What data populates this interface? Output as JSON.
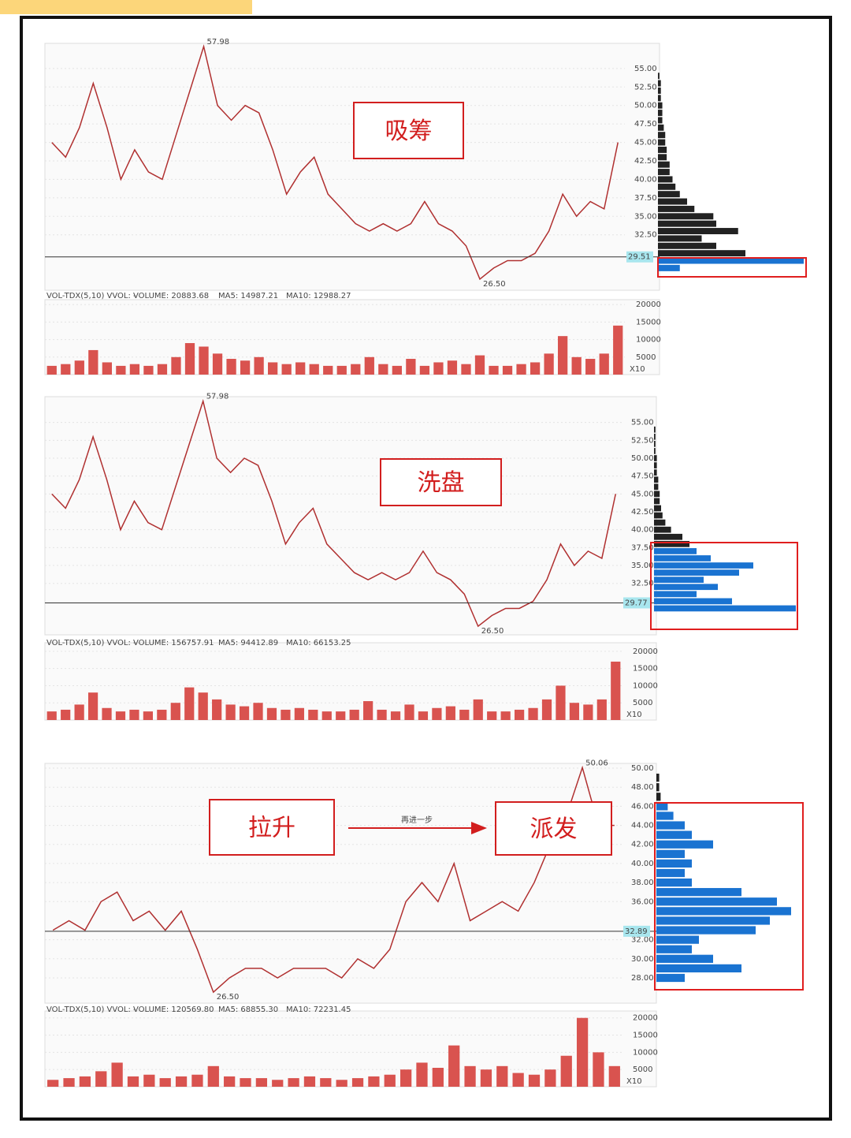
{
  "chart_data": [
    {
      "type": "line",
      "box_labels": [
        "吸筹"
      ],
      "price": {
        "values": [
          45,
          43,
          47,
          53,
          47,
          40,
          44,
          41,
          40,
          46,
          52,
          57.98,
          50,
          48,
          50,
          49,
          44,
          38,
          41,
          43,
          38,
          36,
          34,
          33,
          34,
          33,
          34,
          37,
          34,
          33,
          31,
          26.5,
          28,
          29,
          29,
          30,
          33,
          38,
          35,
          37,
          36,
          45
        ],
        "color": "#b03030",
        "ylim": [
          25,
          58.4
        ],
        "yticks": [
          {
            "value": 32.5,
            "label": "32.50"
          },
          {
            "value": 35,
            "label": "35.00"
          },
          {
            "value": 37.5,
            "label": "37.50"
          },
          {
            "value": 40,
            "label": "40.00"
          },
          {
            "value": 42.5,
            "label": "42.50"
          },
          {
            "value": 45,
            "label": "45.00"
          },
          {
            "value": 47.5,
            "label": "47.50"
          },
          {
            "value": 50,
            "label": "50.00"
          },
          {
            "value": 52.5,
            "label": "52.50"
          },
          {
            "value": 55,
            "label": "55.00"
          }
        ],
        "annotations": [
          {
            "value": 57.98,
            "label": "57.98"
          },
          {
            "value": 26.5,
            "label": "26.50"
          }
        ],
        "current": {
          "value": 29.51,
          "label": "29.51"
        }
      },
      "volume": {
        "legend": [
          "VOL-TDX(5,10) VVOL: -",
          "VOLUME: 20883.68",
          "MA5: 14987.21",
          "MA10: 12988.27"
        ],
        "values": [
          2500,
          3000,
          4000,
          7000,
          3500,
          2500,
          3000,
          2500,
          3000,
          5000,
          9000,
          8000,
          6000,
          4500,
          4000,
          5000,
          3500,
          3000,
          3500,
          3000,
          2500,
          2500,
          3000,
          5000,
          3000,
          2500,
          4500,
          2500,
          3500,
          4000,
          3000,
          5500,
          2500,
          2500,
          3000,
          3500,
          6000,
          11000,
          5000,
          4500,
          6000,
          14000
        ],
        "color": "#d9534f",
        "ylim": [
          0,
          21400
        ],
        "yticks": [
          20000,
          15000,
          10000,
          5000
        ],
        "unit": "X10"
      },
      "profile": {
        "levels": [
          28,
          29,
          30,
          31,
          32,
          33,
          34,
          35,
          36,
          37,
          38,
          39,
          40,
          41,
          42,
          43,
          44,
          45,
          46,
          47,
          48,
          49,
          50,
          51,
          52,
          53,
          54
        ],
        "values": [
          15,
          100,
          60,
          40,
          30,
          55,
          40,
          38,
          25,
          20,
          15,
          12,
          10,
          8,
          8,
          6,
          6,
          5,
          5,
          4,
          3,
          3,
          3,
          2,
          2,
          2,
          1
        ],
        "colors": [
          "#1a73d1",
          "#1a73d1",
          "#222",
          "#222",
          "#222",
          "#222",
          "#222",
          "#222",
          "#222",
          "#222",
          "#222",
          "#222",
          "#222",
          "#222",
          "#222",
          "#222",
          "#222",
          "#222",
          "#222",
          "#222",
          "#222",
          "#222",
          "#222",
          "#222",
          "#222",
          "#222",
          "#222"
        ],
        "xlim": [
          0,
          100
        ]
      }
    },
    {
      "type": "line",
      "box_labels": [
        "洗盘"
      ],
      "price": {
        "values": [
          45,
          43,
          47,
          53,
          47,
          40,
          44,
          41,
          40,
          46,
          52,
          57.98,
          50,
          48,
          50,
          49,
          44,
          38,
          41,
          43,
          38,
          36,
          34,
          33,
          34,
          33,
          34,
          37,
          34,
          33,
          31,
          26.5,
          28,
          29,
          29,
          30,
          33,
          38,
          35,
          37,
          36,
          45
        ],
        "color": "#b03030",
        "ylim": [
          25.3,
          58.6
        ],
        "yticks": [
          {
            "value": 32.5,
            "label": "32.50"
          },
          {
            "value": 35,
            "label": "35.00"
          },
          {
            "value": 37.5,
            "label": "37.50"
          },
          {
            "value": 40,
            "label": "40.00"
          },
          {
            "value": 42.5,
            "label": "42.50"
          },
          {
            "value": 45,
            "label": "45.00"
          },
          {
            "value": 47.5,
            "label": "47.50"
          },
          {
            "value": 50,
            "label": "50.00"
          },
          {
            "value": 52.5,
            "label": "52.50"
          },
          {
            "value": 55,
            "label": "55.00"
          }
        ],
        "annotations": [
          {
            "value": 57.98,
            "label": "57.98"
          },
          {
            "value": 26.5,
            "label": "26.50"
          }
        ],
        "current": {
          "value": 29.77,
          "label": "29.77"
        }
      },
      "volume": {
        "legend": [
          "VOL-TDX(5,10) VVOL: -",
          "VOLUME: 156757.91",
          "MA5: 94412.89",
          "MA10: 66153.25"
        ],
        "values": [
          2500,
          3000,
          4500,
          8000,
          3500,
          2500,
          3000,
          2500,
          3000,
          5000,
          9500,
          8000,
          6000,
          4500,
          4000,
          5000,
          3500,
          3000,
          3500,
          3000,
          2500,
          2500,
          3000,
          5500,
          3000,
          2500,
          4500,
          2500,
          3500,
          4000,
          3000,
          6000,
          2500,
          2500,
          3000,
          3500,
          6000,
          10000,
          5000,
          4500,
          6000,
          17000
        ],
        "color": "#d9534f",
        "ylim": [
          0,
          22500
        ],
        "yticks": [
          20000,
          15000,
          10000,
          5000
        ],
        "unit": "X10"
      },
      "profile": {
        "levels": [
          29,
          30,
          31,
          32,
          33,
          34,
          35,
          36,
          37,
          38,
          39,
          40,
          41,
          42,
          43,
          44,
          45,
          46,
          47,
          48,
          49,
          50,
          51,
          52,
          53,
          54
        ],
        "values": [
          100,
          55,
          30,
          45,
          35,
          60,
          70,
          40,
          30,
          25,
          20,
          12,
          8,
          6,
          5,
          4,
          4,
          3,
          3,
          2,
          2,
          2,
          1,
          1,
          1,
          1
        ],
        "colors": [
          "#1a73d1",
          "#1a73d1",
          "#1a73d1",
          "#1a73d1",
          "#1a73d1",
          "#1a73d1",
          "#1a73d1",
          "#1a73d1",
          "#1a73d1",
          "#222",
          "#222",
          "#222",
          "#222",
          "#222",
          "#222",
          "#222",
          "#222",
          "#222",
          "#222",
          "#222",
          "#222",
          "#222",
          "#222",
          "#222",
          "#222",
          "#222"
        ],
        "xlim": [
          0,
          100
        ]
      }
    },
    {
      "type": "line",
      "box_labels": [
        "拉升",
        "派发"
      ],
      "arrow_label": "再进一步",
      "price": {
        "values": [
          33,
          34,
          33,
          36,
          37,
          34,
          35,
          33,
          35,
          31,
          26.5,
          28,
          29,
          29,
          28,
          29,
          29,
          29,
          28,
          30,
          29,
          31,
          36,
          38,
          36,
          40,
          34,
          35,
          36,
          35,
          38,
          42,
          45,
          50.06,
          44,
          44
        ],
        "color": "#b03030",
        "ylim": [
          25.35,
          50.5
        ],
        "yticks": [
          {
            "value": 28,
            "label": "28.00"
          },
          {
            "value": 30,
            "label": "30.00"
          },
          {
            "value": 32,
            "label": "32.00"
          },
          {
            "value": 36,
            "label": "36.00"
          },
          {
            "value": 38,
            "label": "38.00"
          },
          {
            "value": 40,
            "label": "40.00"
          },
          {
            "value": 42,
            "label": "42.00"
          },
          {
            "value": 44,
            "label": "44.00"
          },
          {
            "value": 46,
            "label": "46.00"
          },
          {
            "value": 48,
            "label": "48.00"
          },
          {
            "value": 50,
            "label": "50.00"
          }
        ],
        "annotations": [
          {
            "value": 50.06,
            "label": "50.06"
          },
          {
            "value": 26.5,
            "label": "26.50"
          }
        ],
        "current": {
          "value": 32.89,
          "label": "32.89"
        }
      },
      "volume": {
        "legend": [
          "VOL-TDX(5,10) VVOL: -",
          "VOLUME: 120569.80",
          "MA5: 68855.30",
          "MA10: 72231.45"
        ],
        "values": [
          2000,
          2500,
          3000,
          4500,
          7000,
          3000,
          3500,
          2500,
          3000,
          3500,
          6000,
          3000,
          2500,
          2500,
          2000,
          2500,
          3000,
          2500,
          2000,
          2500,
          3000,
          3500,
          5000,
          7000,
          5500,
          12000,
          6000,
          5000,
          6000,
          4000,
          3500,
          5000,
          9000,
          20000,
          10000,
          6000
        ],
        "color": "#d9534f",
        "ylim": [
          0,
          22000
        ],
        "yticks": [
          20000,
          15000,
          10000,
          5000
        ],
        "unit": "X10"
      },
      "profile": {
        "levels": [
          28,
          29,
          30,
          31,
          32,
          33,
          34,
          35,
          36,
          37,
          38,
          39,
          40,
          41,
          42,
          43,
          44,
          45,
          46,
          47,
          48,
          49
        ],
        "values": [
          20,
          60,
          40,
          25,
          30,
          70,
          80,
          95,
          85,
          60,
          25,
          20,
          25,
          20,
          40,
          25,
          20,
          12,
          8,
          3,
          2,
          2
        ],
        "colors": [
          "#1a73d1",
          "#1a73d1",
          "#1a73d1",
          "#1a73d1",
          "#1a73d1",
          "#1a73d1",
          "#1a73d1",
          "#1a73d1",
          "#1a73d1",
          "#1a73d1",
          "#1a73d1",
          "#1a73d1",
          "#1a73d1",
          "#1a73d1",
          "#1a73d1",
          "#1a73d1",
          "#1a73d1",
          "#1a73d1",
          "#1a73d1",
          "#222",
          "#222",
          "#222"
        ],
        "xlim": [
          0,
          100
        ]
      }
    }
  ]
}
